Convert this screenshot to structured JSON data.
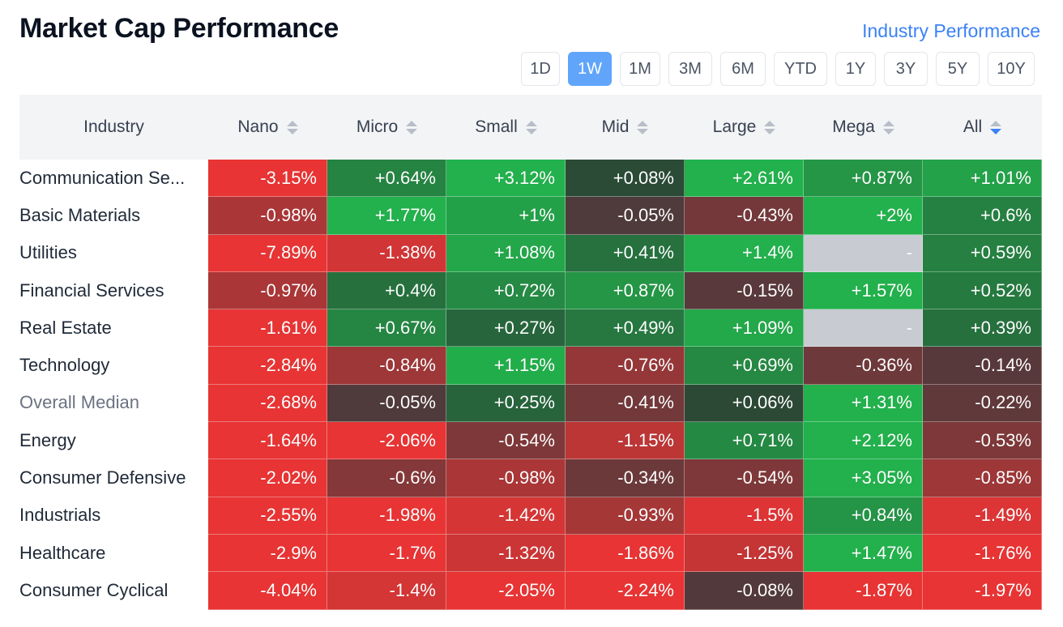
{
  "header": {
    "title": "Market Cap Performance",
    "link": "Industry Performance"
  },
  "periods": {
    "items": [
      "1D",
      "1W",
      "1M",
      "3M",
      "6M",
      "YTD",
      "1Y",
      "3Y",
      "5Y",
      "10Y"
    ],
    "active": "1W"
  },
  "table": {
    "columns": [
      "Industry",
      "Nano",
      "Micro",
      "Small",
      "Mid",
      "Large",
      "Mega",
      "All"
    ],
    "sorted_column": "All",
    "rows": [
      {
        "label": "Communication Se...",
        "values": [
          "-3.15%",
          "+0.64%",
          "+3.12%",
          "+0.08%",
          "+2.61%",
          "+0.87%",
          "+1.01%"
        ]
      },
      {
        "label": "Basic Materials",
        "values": [
          "-0.98%",
          "+1.77%",
          "+1%",
          "-0.05%",
          "-0.43%",
          "+2%",
          "+0.6%"
        ]
      },
      {
        "label": "Utilities",
        "values": [
          "-7.89%",
          "-1.38%",
          "+1.08%",
          "+0.41%",
          "+1.4%",
          "-",
          "+0.59%"
        ]
      },
      {
        "label": "Financial Services",
        "values": [
          "-0.97%",
          "+0.4%",
          "+0.72%",
          "+0.87%",
          "-0.15%",
          "+1.57%",
          "+0.52%"
        ]
      },
      {
        "label": "Real Estate",
        "values": [
          "-1.61%",
          "+0.67%",
          "+0.27%",
          "+0.49%",
          "+1.09%",
          "-",
          "+0.39%"
        ]
      },
      {
        "label": "Technology",
        "values": [
          "-2.84%",
          "-0.84%",
          "+1.15%",
          "-0.76%",
          "+0.69%",
          "-0.36%",
          "-0.14%"
        ]
      },
      {
        "label": "Overall Median",
        "values": [
          "-2.68%",
          "-0.05%",
          "+0.25%",
          "-0.41%",
          "+0.06%",
          "+1.31%",
          "-0.22%"
        ],
        "muted": true
      },
      {
        "label": "Energy",
        "values": [
          "-1.64%",
          "-2.06%",
          "-0.54%",
          "-1.15%",
          "+0.71%",
          "+2.12%",
          "-0.53%"
        ]
      },
      {
        "label": "Consumer Defensive",
        "values": [
          "-2.02%",
          "-0.6%",
          "-0.98%",
          "-0.34%",
          "-0.54%",
          "+3.05%",
          "-0.85%"
        ]
      },
      {
        "label": "Industrials",
        "values": [
          "-2.55%",
          "-1.98%",
          "-1.42%",
          "-0.93%",
          "-1.5%",
          "+0.84%",
          "-1.49%"
        ]
      },
      {
        "label": "Healthcare",
        "values": [
          "-2.9%",
          "-1.7%",
          "-1.32%",
          "-1.86%",
          "-1.25%",
          "+1.47%",
          "-1.76%"
        ]
      },
      {
        "label": "Consumer Cyclical",
        "values": [
          "-4.04%",
          "-1.4%",
          "-2.05%",
          "-2.24%",
          "-0.08%",
          "-1.87%",
          "-1.97%"
        ]
      }
    ]
  },
  "colors": {
    "accent": "#3b82f6",
    "active_period": "#60a5fa",
    "positive": "#22b14c",
    "negative": "#ee3b3b",
    "neutral": "#4a3a3a",
    "empty": "#c8cbd2"
  }
}
